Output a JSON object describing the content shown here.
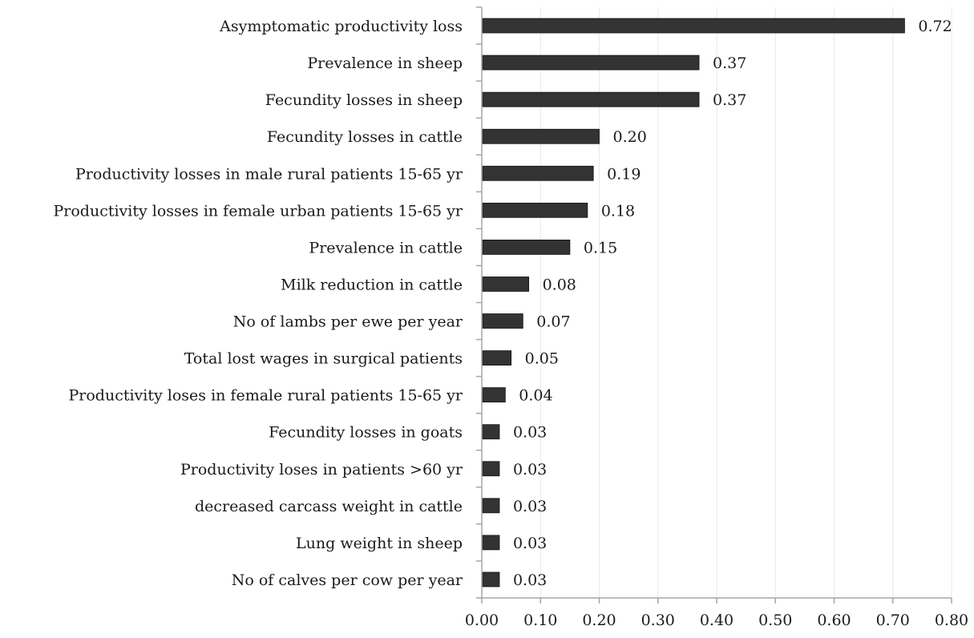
{
  "chart_data": {
    "type": "bar",
    "orientation": "horizontal",
    "categories": [
      "Asymptomatic productivity loss",
      "Prevalence in sheep",
      "Fecundity losses in sheep",
      "Fecundity losses in cattle",
      "Productivity losses in male rural patients 15-65 yr",
      "Productivity losses in female urban patients 15-65 yr",
      "Prevalence in cattle",
      "Milk reduction in cattle",
      "No of lambs per ewe per year",
      "Total lost wages in surgical patients",
      "Productivity loses in female rural patients 15-65 yr",
      "Fecundity losses in goats",
      "Productivity loses in patients >60 yr",
      "decreased carcass weight in cattle",
      "Lung weight in sheep",
      "No of calves per cow per year"
    ],
    "values": [
      0.72,
      0.37,
      0.37,
      0.2,
      0.19,
      0.18,
      0.15,
      0.08,
      0.07,
      0.05,
      0.04,
      0.03,
      0.03,
      0.03,
      0.03,
      0.03
    ],
    "value_labels": [
      "0.72",
      "0.37",
      "0.37",
      "0.20",
      "0.19",
      "0.18",
      "0.15",
      "0.08",
      "0.07",
      "0.05",
      "0.04",
      "0.03",
      "0.03",
      "0.03",
      "0.03",
      "0.03"
    ],
    "xlim": [
      0,
      0.8
    ],
    "x_ticks": [
      "0.00",
      "0.10",
      "0.20",
      "0.30",
      "0.40",
      "0.50",
      "0.60",
      "0.70",
      "0.80"
    ],
    "title": "",
    "xlabel": "",
    "ylabel": "",
    "grid": "vertical",
    "legend": "none",
    "colors": {
      "bar": "#333333",
      "bar_edge": "#111111",
      "grid": "#e6ebdf",
      "axis": "#a6a6a6"
    }
  }
}
